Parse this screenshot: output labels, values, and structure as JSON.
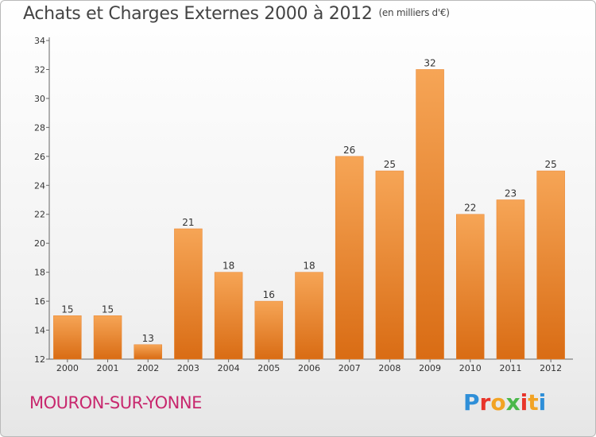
{
  "header": {
    "title": "Achats et Charges Externes 2000 à 2012",
    "unit_note": "(en milliers d'€)"
  },
  "footer": {
    "place": "MOURON-SUR-YONNE"
  },
  "logo": {
    "letters": [
      "P",
      "r",
      "o",
      "x",
      "i",
      "t",
      "i"
    ],
    "colors": [
      "#2f8fd8",
      "#e8342a",
      "#f2a324",
      "#4ab84a",
      "#e8342a",
      "#f2a324",
      "#2f8fd8"
    ]
  },
  "chart_data": {
    "type": "bar",
    "categories": [
      "2000",
      "2001",
      "2002",
      "2003",
      "2004",
      "2005",
      "2006",
      "2007",
      "2008",
      "2009",
      "2010",
      "2011",
      "2012"
    ],
    "values": [
      15,
      15,
      13,
      21,
      18,
      16,
      18,
      26,
      25,
      32,
      22,
      23,
      25
    ],
    "title": "Achats et Charges Externes 2000 à 2012",
    "ylabel": "",
    "xlabel": "",
    "ylim": [
      12,
      34
    ],
    "yticks": [
      12,
      14,
      16,
      18,
      20,
      22,
      24,
      26,
      28,
      30,
      32,
      34
    ],
    "grid": false,
    "bar_color": "#f0923a"
  }
}
